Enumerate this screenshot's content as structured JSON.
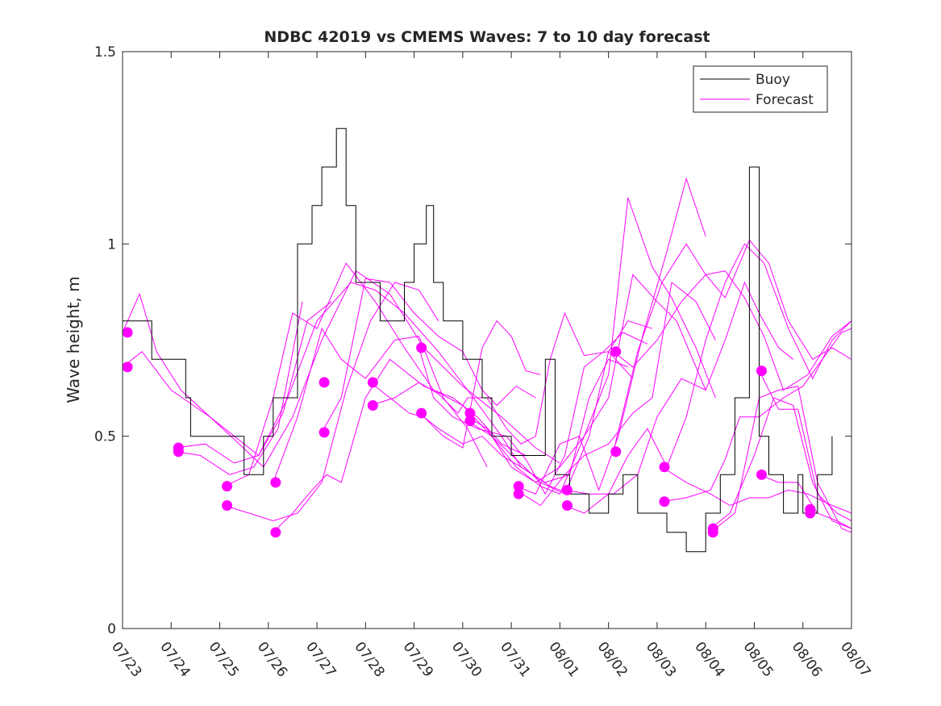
{
  "chart_data": {
    "type": "line",
    "title": "NDBC 42019 vs CMEMS Waves: 7 to 10 day forecast",
    "xlabel": "",
    "ylabel": "Wave height, m",
    "ylim": [
      0,
      1.5
    ],
    "yticks": [
      0,
      0.5,
      1,
      1.5
    ],
    "ytick_labels": [
      "0",
      "0.5",
      "1",
      "1.5"
    ],
    "xlim": [
      0,
      15
    ],
    "xtick_values": [
      0,
      1,
      2,
      3,
      4,
      5,
      6,
      7,
      8,
      9,
      10,
      11,
      12,
      13,
      14,
      15
    ],
    "xtick_labels": [
      "07/23",
      "07/24",
      "07/25",
      "07/26",
      "07/27",
      "07/28",
      "07/29",
      "07/30",
      "07/31",
      "08/01",
      "08/02",
      "08/03",
      "08/04",
      "08/05",
      "08/06",
      "08/07"
    ],
    "legend": {
      "placement": "top-right",
      "entries": [
        "Buoy",
        "Forecast"
      ]
    },
    "grid": false,
    "colors": {
      "buoy": "#000000",
      "forecast": "#ff00ff",
      "axis": "#262626"
    },
    "series": [
      {
        "name": "Buoy",
        "x": [
          0.0,
          0.5,
          0.6,
          1.0,
          1.3,
          1.4,
          2.0,
          2.5,
          2.9,
          3.1,
          3.6,
          3.9,
          4.1,
          4.4,
          4.6,
          4.8,
          5.0,
          5.3,
          5.8,
          6.0,
          6.25,
          6.4,
          6.6,
          7.0,
          7.4,
          7.6,
          8.0,
          8.4,
          8.7,
          8.9,
          9.2,
          9.6,
          10.0,
          10.3,
          10.6,
          11.0,
          11.2,
          11.6,
          12.0,
          12.3,
          12.6,
          12.9,
          13.1,
          13.3,
          13.6,
          13.9,
          14.0,
          14.3,
          14.6
        ],
        "y": [
          0.8,
          0.8,
          0.7,
          0.7,
          0.6,
          0.5,
          0.5,
          0.4,
          0.5,
          0.6,
          1.0,
          1.1,
          1.2,
          1.3,
          1.1,
          0.9,
          0.9,
          0.8,
          0.9,
          1.0,
          1.1,
          0.9,
          0.8,
          0.7,
          0.6,
          0.5,
          0.45,
          0.45,
          0.7,
          0.4,
          0.35,
          0.3,
          0.35,
          0.4,
          0.3,
          0.3,
          0.25,
          0.2,
          0.3,
          0.4,
          0.6,
          1.2,
          0.5,
          0.4,
          0.3,
          0.4,
          0.3,
          0.4,
          0.5
        ]
      },
      {
        "name": "Forecast",
        "segments": [
          {
            "x": [
              0,
              0.4,
              1,
              1.8,
              2.3,
              2.8,
              3.4,
              4.0,
              4.7,
              5.2,
              5.8,
              6.5,
              7.1,
              7.8,
              8.2,
              8.8,
              9.2
            ],
            "y": [
              0.68,
              0.72,
              0.62,
              0.55,
              0.5,
              0.45,
              0.6,
              0.8,
              0.9,
              0.88,
              0.82,
              0.72,
              0.62,
              0.5,
              0.42,
              0.37,
              0.35
            ]
          },
          {
            "x": [
              0,
              0.35,
              0.7,
              1.2,
              1.8,
              2.4,
              2.9,
              3.5,
              4.1,
              4.8,
              5.5,
              6.2,
              7.0,
              7.8,
              8.5,
              9.0
            ],
            "y": [
              0.77,
              0.87,
              0.72,
              0.62,
              0.55,
              0.48,
              0.42,
              0.55,
              0.75,
              0.93,
              0.87,
              0.73,
              0.63,
              0.55,
              0.47,
              0.43
            ]
          },
          {
            "x": [
              1.1,
              1.7,
              2.3,
              2.8,
              3.3,
              3.8,
              4.3
            ],
            "y": [
              0.47,
              0.48,
              0.43,
              0.45,
              0.56,
              0.8,
              0.85
            ]
          },
          {
            "x": [
              1.1,
              1.6,
              2.2,
              2.7,
              3.2,
              3.7
            ],
            "y": [
              0.46,
              0.45,
              0.4,
              0.42,
              0.52,
              0.85
            ]
          },
          {
            "x": [
              2.1,
              2.6,
              3.1,
              3.5,
              4.0,
              4.6,
              5.2,
              5.8,
              6.4,
              7.0,
              7.6,
              8.1,
              8.6,
              9.1,
              9.6,
              10.0,
              10.4,
              10.9
            ],
            "y": [
              0.37,
              0.4,
              0.6,
              0.82,
              0.78,
              0.95,
              0.85,
              0.73,
              0.62,
              0.58,
              0.5,
              0.44,
              0.38,
              0.35,
              0.5,
              0.72,
              0.8,
              0.78
            ]
          },
          {
            "x": [
              2.1,
              2.6,
              3.1,
              3.6,
              4.1,
              4.6,
              5.1,
              5.6,
              6.1,
              6.5
            ],
            "y": [
              0.32,
              0.3,
              0.28,
              0.3,
              0.38,
              0.62,
              0.8,
              0.9,
              0.88,
              0.8
            ]
          },
          {
            "x": [
              3.1,
              3.5,
              3.9,
              4.2,
              4.5,
              5.0,
              5.5,
              6.2,
              6.8,
              7.3,
              7.8,
              8.3
            ],
            "y": [
              0.25,
              0.3,
              0.36,
              0.4,
              0.38,
              0.6,
              0.7,
              0.63,
              0.6,
              0.55,
              0.48,
              0.45
            ]
          },
          {
            "x": [
              3.1,
              3.6,
              4.1,
              4.5,
              5.0,
              5.6,
              6.1,
              6.6,
              7.1,
              7.5
            ],
            "y": [
              0.38,
              0.55,
              0.78,
              0.7,
              0.65,
              0.75,
              0.76,
              0.6,
              0.52,
              0.42
            ]
          },
          {
            "x": [
              4.1,
              4.5,
              5.0,
              5.5,
              6.0,
              6.5,
              7.0,
              7.4,
              7.7,
              8.1,
              8.5
            ],
            "y": [
              0.51,
              0.6,
              0.91,
              0.9,
              0.82,
              0.76,
              0.72,
              0.62,
              0.58,
              0.63,
              0.6
            ]
          },
          {
            "x": [
              5.1,
              5.6,
              6.1,
              6.5,
              6.9,
              7.1,
              7.5,
              7.9,
              8.2,
              8.5,
              8.8,
              9.1,
              9.5,
              10.0,
              10.5
            ],
            "y": [
              0.58,
              0.6,
              0.64,
              0.61,
              0.56,
              0.6,
              0.6,
              0.52,
              0.48,
              0.5,
              0.7,
              0.82,
              0.71,
              0.72,
              0.65
            ]
          },
          {
            "x": [
              5.1,
              5.5,
              5.9,
              6.2,
              6.6,
              7.0,
              7.4,
              7.7,
              8.0,
              8.3,
              8.6
            ],
            "y": [
              0.64,
              0.6,
              0.56,
              0.55,
              0.5,
              0.47,
              0.73,
              0.8,
              0.76,
              0.67,
              0.66
            ]
          },
          {
            "x": [
              6.1,
              6.5,
              7.0,
              7.4,
              7.8,
              8.2,
              8.7,
              9.2,
              9.6,
              10.0,
              10.4
            ],
            "y": [
              0.56,
              0.52,
              0.48,
              0.5,
              0.45,
              0.42,
              0.38,
              0.4,
              0.6,
              0.7,
              0.68
            ]
          },
          {
            "x": [
              6.1,
              6.4,
              6.8,
              7.3,
              7.9,
              8.3,
              8.7,
              9.1,
              9.5,
              9.9,
              10.3,
              10.8
            ],
            "y": [
              0.73,
              0.6,
              0.55,
              0.52,
              0.5,
              0.44,
              0.35,
              0.45,
              0.68,
              0.72,
              0.77,
              0.74
            ]
          },
          {
            "x": [
              7.1,
              7.5,
              8.0,
              8.5,
              9.0,
              9.5,
              10.0,
              10.4,
              10.9,
              11.3,
              11.8,
              12.2
            ],
            "y": [
              0.55,
              0.52,
              0.42,
              0.38,
              0.42,
              0.5,
              0.66,
              1.12,
              0.94,
              0.86,
              0.73,
              0.6
            ]
          },
          {
            "x": [
              7.1,
              7.6,
              8.1,
              8.6,
              9.0,
              9.5,
              10.0,
              10.5,
              11.0,
              11.4,
              12.0
            ],
            "y": [
              0.54,
              0.5,
              0.42,
              0.37,
              0.35,
              0.5,
              0.6,
              0.92,
              0.85,
              0.8,
              0.62
            ]
          },
          {
            "x": [
              8.1,
              8.5,
              9.0,
              9.4,
              9.8,
              10.2,
              10.7,
              11.2,
              11.6,
              12.0
            ],
            "y": [
              0.37,
              0.35,
              0.48,
              0.5,
              0.36,
              0.5,
              0.76,
              0.98,
              1.17,
              1.02
            ]
          },
          {
            "x": [
              8.1,
              8.6,
              9.1,
              9.5,
              10.0,
              10.5,
              10.9,
              11.3,
              11.8,
              12.2
            ],
            "y": [
              0.36,
              0.32,
              0.4,
              0.45,
              0.48,
              0.56,
              0.6,
              0.9,
              0.85,
              0.75
            ]
          },
          {
            "x": [
              9.1,
              9.6,
              10.1,
              10.6,
              11.0,
              11.5,
              12.0,
              12.4,
              12.8,
              13.1,
              13.5,
              13.8
            ],
            "y": [
              0.36,
              0.35,
              0.35,
              0.4,
              0.55,
              0.65,
              0.62,
              0.75,
              0.9,
              0.82,
              0.73,
              0.7
            ]
          },
          {
            "x": [
              9.1,
              9.5,
              10.0,
              10.4,
              10.8,
              11.2,
              11.6,
              12.0,
              12.4,
              12.8,
              13.2,
              13.7,
              14.2,
              14.6,
              15.0
            ],
            "y": [
              0.32,
              0.3,
              0.35,
              0.45,
              0.52,
              0.42,
              0.55,
              0.75,
              0.9,
              1.0,
              0.95,
              0.78,
              0.65,
              0.75,
              0.8
            ]
          },
          {
            "x": [
              10.1,
              10.6,
              11.1,
              11.6,
              12.0,
              12.4,
              12.9,
              13.3,
              13.7,
              14.2,
              14.6,
              15.0
            ],
            "y": [
              0.46,
              0.72,
              0.9,
              1.0,
              0.92,
              0.86,
              1.01,
              0.95,
              0.8,
              0.7,
              0.73,
              0.7
            ]
          },
          {
            "x": [
              10.1,
              10.5,
              11.0,
              11.5,
              12.0,
              12.4,
              12.8,
              13.2,
              13.6,
              14.1,
              14.6,
              15.0
            ],
            "y": [
              0.72,
              0.68,
              0.75,
              0.85,
              0.92,
              0.93,
              0.86,
              0.76,
              0.62,
              0.66,
              0.76,
              0.8
            ]
          },
          {
            "x": [
              11.1,
              11.6,
              12.1,
              12.5,
              12.9,
              13.3,
              13.7,
              14.1,
              14.6,
              15.0
            ],
            "y": [
              0.42,
              0.38,
              0.35,
              0.32,
              0.34,
              0.34,
              0.36,
              0.35,
              0.32,
              0.3
            ]
          },
          {
            "x": [
              11.1,
              11.6,
              12.1,
              12.4,
              12.7,
              13.1,
              13.6,
              14.0,
              14.4,
              14.8,
              15.0
            ],
            "y": [
              0.33,
              0.34,
              0.36,
              0.44,
              0.55,
              0.55,
              0.6,
              0.63,
              0.7,
              0.77,
              0.78
            ]
          },
          {
            "x": [
              12.1,
              12.5,
              13.0,
              13.4,
              13.8,
              14.2,
              14.6,
              15.0
            ],
            "y": [
              0.26,
              0.3,
              0.45,
              0.6,
              0.58,
              0.38,
              0.28,
              0.26
            ]
          },
          {
            "x": [
              12.1,
              12.6,
              13.1,
              13.5,
              13.9,
              14.3,
              14.8,
              15.0
            ],
            "y": [
              0.25,
              0.3,
              0.6,
              0.62,
              0.63,
              0.38,
              0.26,
              0.25
            ]
          },
          {
            "x": [
              13.1,
              13.5,
              13.9,
              14.3,
              14.7,
              15.0
            ],
            "y": [
              0.67,
              0.57,
              0.57,
              0.35,
              0.3,
              0.28
            ]
          },
          {
            "x": [
              13.1,
              13.5,
              13.9,
              14.3,
              14.7,
              15.0
            ],
            "y": [
              0.4,
              0.38,
              0.38,
              0.3,
              0.28,
              0.26
            ]
          }
        ]
      }
    ],
    "markers": {
      "x": [
        0.1,
        0.1,
        1.15,
        1.15,
        2.15,
        2.15,
        3.15,
        3.15,
        4.15,
        4.15,
        5.15,
        5.15,
        6.15,
        6.15,
        7.15,
        7.15,
        8.15,
        8.15,
        9.15,
        9.15,
        10.15,
        10.15,
        11.15,
        11.15,
        12.15,
        12.15,
        13.15,
        13.15,
        14.15,
        14.15
      ],
      "y": [
        0.77,
        0.68,
        0.47,
        0.46,
        0.37,
        0.32,
        0.38,
        0.25,
        0.64,
        0.51,
        0.64,
        0.58,
        0.73,
        0.56,
        0.56,
        0.54,
        0.37,
        0.35,
        0.36,
        0.32,
        0.72,
        0.46,
        0.42,
        0.33,
        0.26,
        0.25,
        0.67,
        0.4,
        0.31,
        0.3
      ]
    }
  }
}
